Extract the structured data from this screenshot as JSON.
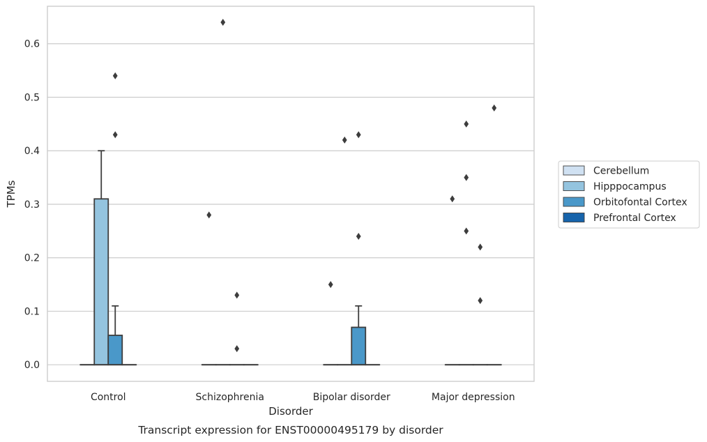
{
  "chart_data": {
    "type": "box",
    "caption": "Transcript expression for ENST00000495179 by disorder",
    "xlabel": "Disorder",
    "ylabel": "TPMs",
    "ylim": [
      -0.031,
      0.67
    ],
    "yticks": [
      "0.0",
      "0.1",
      "0.2",
      "0.3",
      "0.4",
      "0.5",
      "0.6"
    ],
    "grid": "horizontal",
    "legend_position": "right",
    "categories": [
      "Control",
      "Schizophrenia",
      "Bipolar disorder",
      "Major depression"
    ],
    "series": [
      {
        "name": "Cerebellum",
        "color": "#d0e1f2",
        "boxes": [
          {
            "q1": 0,
            "median": 0,
            "q3": 0,
            "whisker_low": 0,
            "whisker_high": 0,
            "outliers": []
          },
          {
            "q1": 0,
            "median": 0,
            "q3": 0,
            "whisker_low": 0,
            "whisker_high": 0,
            "outliers": [
              0.28
            ]
          },
          {
            "q1": 0,
            "median": 0,
            "q3": 0,
            "whisker_low": 0,
            "whisker_high": 0,
            "outliers": [
              0.15
            ]
          },
          {
            "q1": 0,
            "median": 0,
            "q3": 0,
            "whisker_low": 0,
            "whisker_high": 0,
            "outliers": [
              0.31
            ]
          }
        ]
      },
      {
        "name": "Hipppocampus",
        "color": "#94c4df",
        "boxes": [
          {
            "q1": 0,
            "median": 0,
            "q3": 0.31,
            "whisker_low": 0,
            "whisker_high": 0.4,
            "outliers": []
          },
          {
            "q1": 0,
            "median": 0,
            "q3": 0,
            "whisker_low": 0,
            "whisker_high": 0,
            "outliers": [
              0.64
            ]
          },
          {
            "q1": 0,
            "median": 0,
            "q3": 0,
            "whisker_low": 0,
            "whisker_high": 0,
            "outliers": [
              0.42
            ]
          },
          {
            "q1": 0,
            "median": 0,
            "q3": 0,
            "whisker_low": 0,
            "whisker_high": 0,
            "outliers": [
              0.45,
              0.35,
              0.25
            ]
          }
        ]
      },
      {
        "name": "Orbitofontal Cortex",
        "color": "#4a98c9",
        "boxes": [
          {
            "q1": 0,
            "median": 0,
            "q3": 0.055,
            "whisker_low": 0,
            "whisker_high": 0.11,
            "outliers": [
              0.54,
              0.43
            ]
          },
          {
            "q1": 0,
            "median": 0,
            "q3": 0,
            "whisker_low": 0,
            "whisker_high": 0,
            "outliers": [
              0.13,
              0.03
            ]
          },
          {
            "q1": 0,
            "median": 0,
            "q3": 0.07,
            "whisker_low": 0,
            "whisker_high": 0.11,
            "outliers": [
              0.43,
              0.24
            ]
          },
          {
            "q1": 0,
            "median": 0,
            "q3": 0,
            "whisker_low": 0,
            "whisker_high": 0,
            "outliers": [
              0.22,
              0.12
            ]
          }
        ]
      },
      {
        "name": "Prefrontal Cortex",
        "color": "#1764ab",
        "boxes": [
          {
            "q1": 0,
            "median": 0,
            "q3": 0,
            "whisker_low": 0,
            "whisker_high": 0,
            "outliers": []
          },
          {
            "q1": 0,
            "median": 0,
            "q3": 0,
            "whisker_low": 0,
            "whisker_high": 0,
            "outliers": []
          },
          {
            "q1": 0,
            "median": 0,
            "q3": 0,
            "whisker_low": 0,
            "whisker_high": 0,
            "outliers": []
          },
          {
            "q1": 0,
            "median": 0,
            "q3": 0,
            "whisker_low": 0,
            "whisker_high": 0,
            "outliers": [
              0.48
            ]
          }
        ]
      }
    ]
  }
}
